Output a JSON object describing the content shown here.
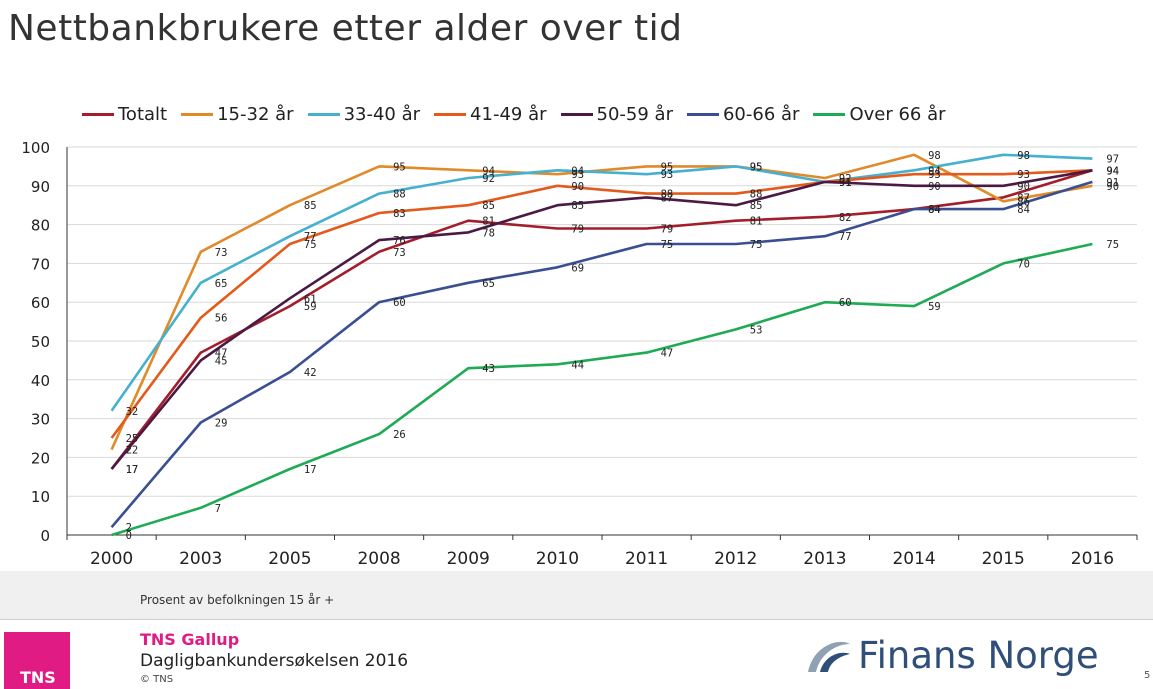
{
  "title": "Nettbankbrukere etter alder over tid",
  "footer": {
    "note": "Prosent av befolkningen 15 år +",
    "tns_logo_text": "TNS",
    "tns_name": "TNS Gallup",
    "survey": "Dagligbankundersøkelsen 2016",
    "copyright": "© TNS",
    "brand_name": "Finans Norge",
    "page_number": "5"
  },
  "colors": {
    "tns_pink": "#e01b84",
    "finans_blue": "#2f4f7a",
    "finans_gray": "#8fa1b3"
  },
  "chart_data": {
    "type": "line",
    "categories": [
      "2000",
      "2003",
      "2005",
      "2008",
      "2009",
      "2010",
      "2011",
      "2012",
      "2013",
      "2014",
      "2015",
      "2016"
    ],
    "ylim": [
      0,
      100
    ],
    "yticks": [
      0,
      10,
      20,
      30,
      40,
      50,
      60,
      70,
      80,
      90,
      100
    ],
    "grid": true,
    "legend": "top",
    "series": [
      {
        "name": "Totalt",
        "color": "#a31d2b",
        "values": [
          17,
          47,
          59,
          73,
          81,
          79,
          79,
          81,
          82,
          84,
          87,
          94
        ]
      },
      {
        "name": "15-32 år",
        "color": "#e08a2a",
        "values": [
          22,
          73,
          85,
          95,
          94,
          93,
          95,
          95,
          92,
          98,
          86,
          90
        ]
      },
      {
        "name": "33-40 år",
        "color": "#45b0cf",
        "values": [
          32,
          65,
          77,
          88,
          92,
          94,
          93,
          95,
          91,
          94,
          98,
          97
        ]
      },
      {
        "name": "41-49 år",
        "color": "#e25a1c",
        "values": [
          25,
          56,
          75,
          83,
          85,
          90,
          88,
          88,
          91,
          93,
          93,
          94
        ]
      },
      {
        "name": "50-59 år",
        "color": "#4a1a45",
        "values": [
          17,
          45,
          61,
          76,
          78,
          85,
          87,
          85,
          91,
          90,
          90,
          94
        ]
      },
      {
        "name": "60-66 år",
        "color": "#3a4e92",
        "values": [
          2,
          29,
          42,
          60,
          65,
          69,
          75,
          75,
          77,
          84,
          84,
          91
        ]
      },
      {
        "name": "Over 66 år",
        "color": "#1faa55",
        "values": [
          0,
          7,
          17,
          26,
          43,
          44,
          47,
          53,
          60,
          59,
          70,
          75
        ]
      }
    ],
    "label_series": [
      {
        "values": [
          17,
          47,
          59,
          73,
          81,
          79,
          79,
          81,
          82,
          84,
          87,
          94
        ]
      },
      {
        "values": [
          22,
          73,
          85,
          95,
          94,
          93,
          95,
          95,
          92,
          98,
          86,
          90
        ]
      },
      {
        "values": [
          32,
          65,
          77,
          88,
          92,
          94,
          93,
          95,
          91,
          94,
          98,
          97
        ]
      },
      {
        "values": [
          25,
          56,
          75,
          83,
          85,
          90,
          88,
          88,
          91,
          93,
          93,
          94
        ]
      },
      {
        "values": [
          17,
          45,
          61,
          76,
          78,
          85,
          87,
          85,
          91,
          90,
          90,
          94
        ]
      },
      {
        "values": [
          2,
          29,
          42,
          60,
          65,
          69,
          75,
          75,
          77,
          84,
          84,
          91
        ]
      },
      {
        "values": [
          0,
          7,
          17,
          26,
          43,
          44,
          47,
          53,
          60,
          59,
          70,
          75
        ]
      }
    ]
  }
}
